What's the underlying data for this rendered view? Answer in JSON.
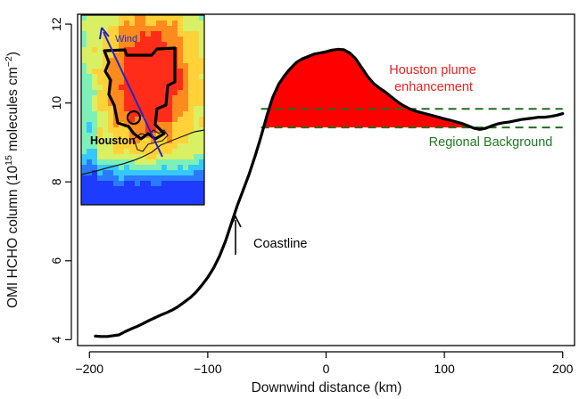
{
  "chart_data": {
    "type": "line",
    "xlabel": "Downwind distance (km)",
    "ylabel": "OMI HCHO column (10",
    "ylabel_sup1": "15",
    "ylabel_mid": " molecules cm",
    "ylabel_sup2": "−2",
    "ylabel_end": ")",
    "xlim": [
      -210,
      210
    ],
    "ylim": [
      3.85,
      12.25
    ],
    "x_ticks": [
      -200,
      -100,
      0,
      100,
      200
    ],
    "x_tick_labels": [
      "−200",
      "−100",
      "0",
      "100",
      "200"
    ],
    "y_ticks": [
      4,
      6,
      8,
      10,
      12
    ],
    "y_tick_labels": [
      "4",
      "6",
      "8",
      "10",
      "12"
    ],
    "grid": false,
    "series": [
      {
        "x": [
          -195,
          -190,
          -185,
          -180,
          -175,
          -170,
          -165,
          -160,
          -155,
          -150,
          -145,
          -140,
          -135,
          -130,
          -125,
          -120,
          -115,
          -110,
          -105,
          -100,
          -95,
          -90,
          -85,
          -80,
          -75,
          -70,
          -65,
          -60,
          -55,
          -50,
          -45,
          -40,
          -35,
          -30,
          -25,
          -20,
          -15,
          -10,
          -5,
          0,
          5,
          10,
          15,
          20,
          25,
          30,
          35,
          40,
          45,
          50,
          55,
          60,
          65,
          70,
          75,
          80,
          85,
          90,
          95,
          100,
          105,
          110,
          115,
          120,
          125,
          130,
          135,
          140,
          145,
          150,
          155,
          160,
          165,
          170,
          175,
          180,
          185,
          190,
          195,
          200
        ],
        "values": [
          4.09,
          4.08,
          4.08,
          4.1,
          4.12,
          4.2,
          4.27,
          4.33,
          4.4,
          4.48,
          4.55,
          4.62,
          4.68,
          4.75,
          4.84,
          4.95,
          5.06,
          5.2,
          5.38,
          5.58,
          5.82,
          6.12,
          6.5,
          6.95,
          7.4,
          7.8,
          8.2,
          8.65,
          9.15,
          9.68,
          10.15,
          10.48,
          10.7,
          10.88,
          11.03,
          11.12,
          11.18,
          11.24,
          11.27,
          11.3,
          11.34,
          11.36,
          11.35,
          11.27,
          11.12,
          10.9,
          10.68,
          10.5,
          10.38,
          10.28,
          10.16,
          10.04,
          9.94,
          9.86,
          9.8,
          9.76,
          9.72,
          9.68,
          9.64,
          9.6,
          9.56,
          9.52,
          9.48,
          9.42,
          9.36,
          9.33,
          9.36,
          9.42,
          9.47,
          9.5,
          9.52,
          9.55,
          9.58,
          9.6,
          9.62,
          9.64,
          9.64,
          9.66,
          9.69,
          9.73
        ],
        "color": "#000000"
      }
    ],
    "background_band": {
      "lower": 9.38,
      "upper": 9.85,
      "color": "#1f6e1f"
    },
    "plume_fill_color": "#ff0000",
    "annotations": {
      "plume_line1": "Houston plume",
      "plume_line2": "enhancement",
      "background": "Regional Background",
      "coastline": "Coastline"
    },
    "inset": {
      "wind_label": "Wind",
      "city_label": "Houston",
      "arrow_color": "#1d27c9",
      "colormap": [
        "#1e3cff",
        "#2a7bff",
        "#35c8ff",
        "#7df0b8",
        "#d9f064",
        "#ffd23a",
        "#ff8a1e",
        "#ff2c1a"
      ]
    }
  }
}
